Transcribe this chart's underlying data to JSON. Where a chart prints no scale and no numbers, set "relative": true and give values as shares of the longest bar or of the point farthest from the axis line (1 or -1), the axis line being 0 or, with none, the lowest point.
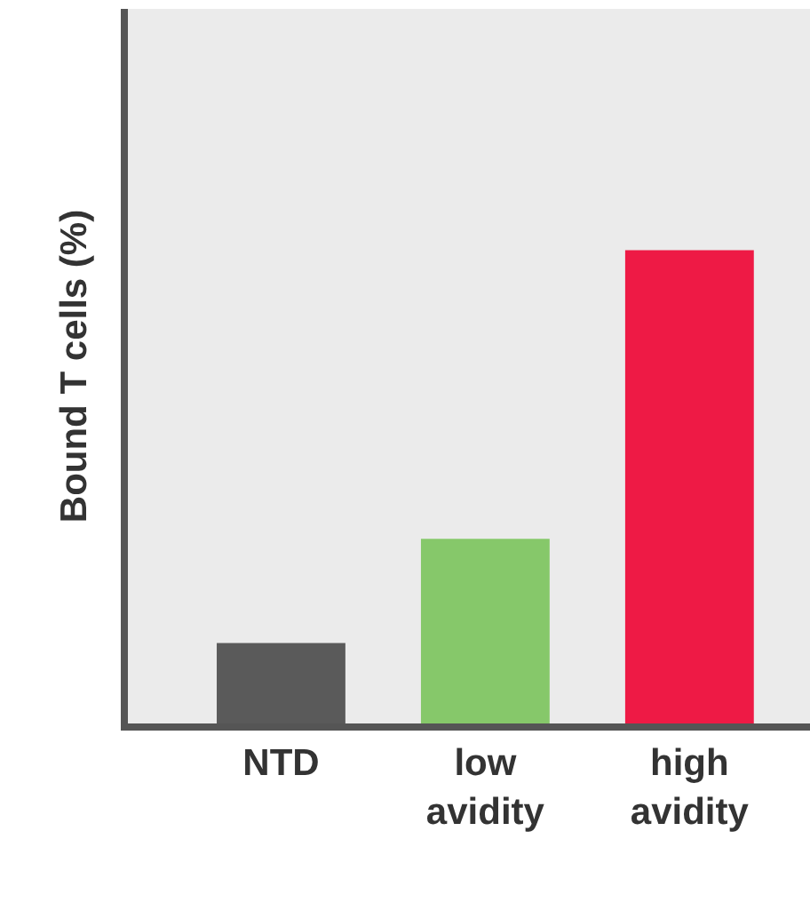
{
  "chart_data": {
    "type": "bar",
    "ylabel": "Bound T cells (%)",
    "categories": [
      "NTD",
      "low avidity",
      "high avidity"
    ],
    "values": [
      0.17,
      0.39,
      1
    ],
    "colors": [
      "#5a5a5a",
      "#86c86a",
      "#ee1a45"
    ],
    "relative": true,
    "grid": false,
    "legend": false
  }
}
